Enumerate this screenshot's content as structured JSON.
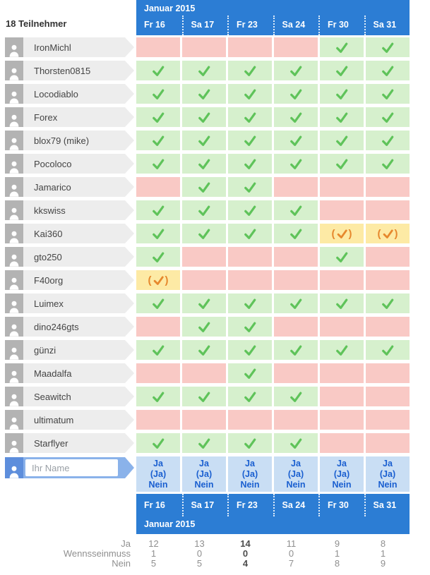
{
  "participants_count_label": "18 Teilnehmer",
  "header": {
    "month": "Januar 2015",
    "days": [
      "Fr 16",
      "Sa 17",
      "Fr 23",
      "Sa 24",
      "Fr 30",
      "Sa 31"
    ]
  },
  "participants": [
    {
      "name": "IronMichl",
      "answers": [
        "no",
        "no",
        "no",
        "no",
        "yes",
        "yes"
      ]
    },
    {
      "name": "Thorsten0815",
      "answers": [
        "yes",
        "yes",
        "yes",
        "yes",
        "yes",
        "yes"
      ]
    },
    {
      "name": "Locodiablo",
      "answers": [
        "yes",
        "yes",
        "yes",
        "yes",
        "yes",
        "yes"
      ]
    },
    {
      "name": "Forex",
      "answers": [
        "yes",
        "yes",
        "yes",
        "yes",
        "yes",
        "yes"
      ]
    },
    {
      "name": "blox79 (mike)",
      "answers": [
        "yes",
        "yes",
        "yes",
        "yes",
        "yes",
        "yes"
      ]
    },
    {
      "name": "Pocoloco",
      "answers": [
        "yes",
        "yes",
        "yes",
        "yes",
        "yes",
        "yes"
      ]
    },
    {
      "name": "Jamarico",
      "answers": [
        "no",
        "yes",
        "yes",
        "no",
        "no",
        "no"
      ]
    },
    {
      "name": "kkswiss",
      "answers": [
        "yes",
        "yes",
        "yes",
        "yes",
        "no",
        "no"
      ]
    },
    {
      "name": "Kai360",
      "answers": [
        "yes",
        "yes",
        "yes",
        "yes",
        "ifneedbe",
        "ifneedbe"
      ]
    },
    {
      "name": "gto250",
      "answers": [
        "yes",
        "no",
        "no",
        "no",
        "yes",
        "no"
      ]
    },
    {
      "name": "F40org",
      "answers": [
        "ifneedbe",
        "no",
        "no",
        "no",
        "no",
        "no"
      ]
    },
    {
      "name": "Luimex",
      "answers": [
        "yes",
        "yes",
        "yes",
        "yes",
        "yes",
        "yes"
      ]
    },
    {
      "name": "dino246gts",
      "answers": [
        "no",
        "yes",
        "yes",
        "no",
        "no",
        "no"
      ]
    },
    {
      "name": "günzi",
      "answers": [
        "yes",
        "yes",
        "yes",
        "yes",
        "yes",
        "yes"
      ]
    },
    {
      "name": "Maadalfa",
      "answers": [
        "no",
        "no",
        "yes",
        "no",
        "no",
        "no"
      ]
    },
    {
      "name": "Seawitch",
      "answers": [
        "yes",
        "yes",
        "yes",
        "yes",
        "no",
        "no"
      ]
    },
    {
      "name": "ultimatum",
      "answers": [
        "no",
        "no",
        "no",
        "no",
        "no",
        "no"
      ]
    },
    {
      "name": "Starflyer",
      "answers": [
        "yes",
        "yes",
        "yes",
        "yes",
        "no",
        "no"
      ]
    }
  ],
  "input_row": {
    "placeholder": "Ihr Name",
    "options": [
      {
        "key": "ja",
        "label": "Ja"
      },
      {
        "key": "ifneedbe",
        "label": "(Ja)"
      },
      {
        "key": "nein",
        "label": "Nein"
      }
    ]
  },
  "footer": {
    "days": [
      "Fr 16",
      "Sa 17",
      "Fr 23",
      "Sa 24",
      "Fr 30",
      "Sa 31"
    ],
    "month": "Januar 2015"
  },
  "summary": {
    "rows": [
      {
        "label": "Ja",
        "values": [
          "12",
          "13",
          "14",
          "11",
          "9",
          "8"
        ]
      },
      {
        "label": "Wennsseinmuss",
        "values": [
          "1",
          "0",
          "0",
          "0",
          "1",
          "1"
        ]
      },
      {
        "label": "Nein",
        "values": [
          "5",
          "5",
          "4",
          "7",
          "8",
          "9"
        ]
      }
    ],
    "highlight_column": 2
  },
  "colors": {
    "header_blue": "#2c7dd4",
    "yes_bg": "#d6f0cd",
    "yes_check": "#5fc35a",
    "no_bg": "#f9c9c5",
    "ifneedbe_bg": "#fdeaa5",
    "ifneedbe_check": "#e6882d",
    "vote_cell_bg": "#c9def4",
    "vote_link_blue": "#1a5fd0"
  }
}
